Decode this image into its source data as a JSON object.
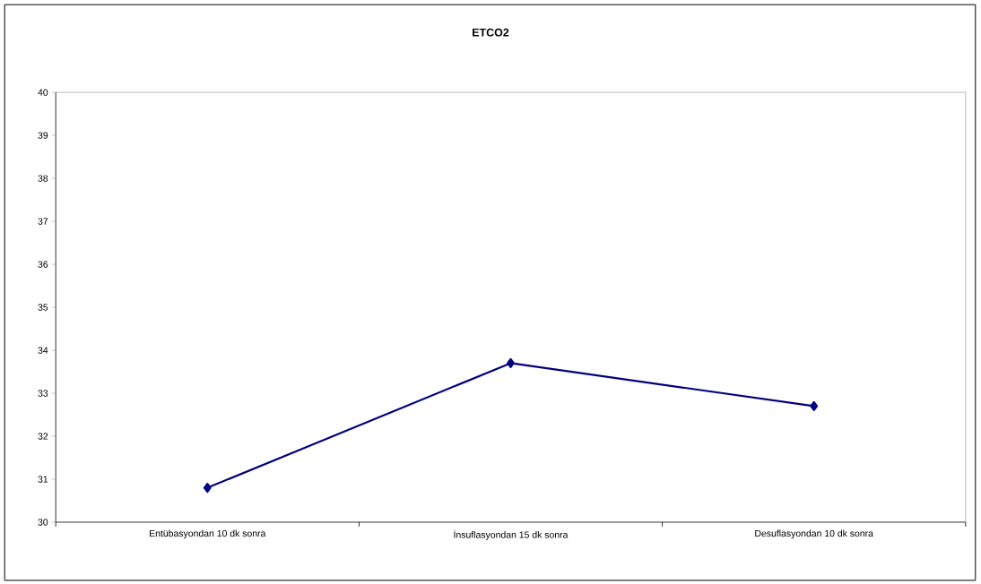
{
  "chart_data": {
    "type": "line",
    "title": "ETCO2",
    "categories": [
      "Entübasyondan 10 dk sonra",
      "İnsuflasyondan 15 dk sonra",
      "Desuflasyondan 10 dk sonra"
    ],
    "series": [
      {
        "color": "#000080",
        "values": [
          30.8,
          33.7,
          32.7
        ]
      }
    ],
    "ylim": [
      30,
      40
    ],
    "yticks": [
      30,
      31,
      32,
      33,
      34,
      35,
      36,
      37,
      38,
      39,
      40
    ],
    "marker": "diamond",
    "line_style": "solid"
  }
}
